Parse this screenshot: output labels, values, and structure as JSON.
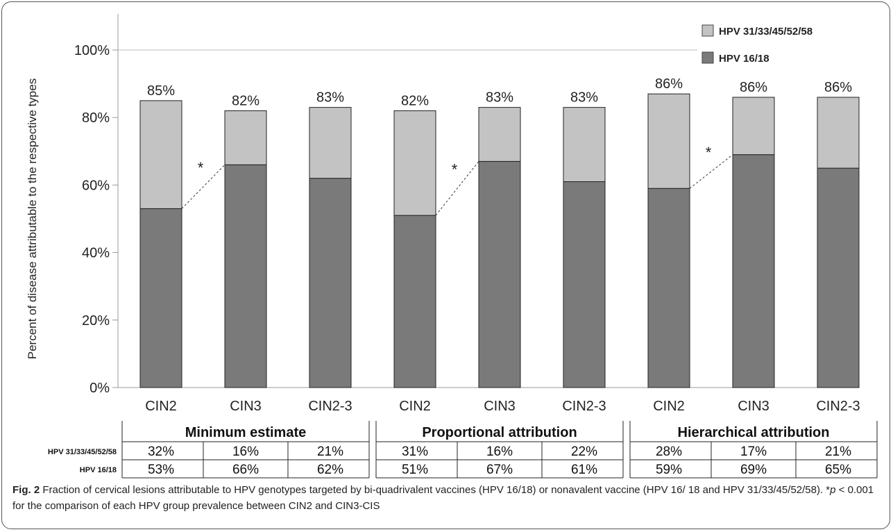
{
  "chart_data": {
    "type": "bar",
    "stacked": true,
    "ylabel": "Percent of disease attributable to the respective types",
    "yticks": [
      "0%",
      "20%",
      "40%",
      "60%",
      "80%",
      "100%"
    ],
    "ylim": [
      0,
      100
    ],
    "categories": [
      "CIN2",
      "CIN3",
      "CIN2-3",
      "CIN2",
      "CIN3",
      "CIN2-3",
      "CIN2",
      "CIN3",
      "CIN2-3"
    ],
    "groups": [
      "Minimum estimate",
      "Proportional attribution",
      "Hierarchical attribution"
    ],
    "series": [
      {
        "name": "HPV 16/18",
        "color": "#7a7a7a",
        "values": [
          53,
          66,
          62,
          51,
          67,
          61,
          59,
          69,
          65
        ]
      },
      {
        "name": "HPV 31/33/45/52/58",
        "color": "#c3c3c3",
        "values": [
          32,
          16,
          21,
          31,
          16,
          22,
          28,
          17,
          21
        ]
      }
    ],
    "totals": [
      "85%",
      "82%",
      "83%",
      "82%",
      "83%",
      "83%",
      "86%",
      "86%",
      "86%"
    ],
    "legend": [
      "HPV 31/33/45/52/58",
      "HPV 16/18"
    ],
    "legend_position": "top-right",
    "significance_marks": [
      {
        "from": 0,
        "to": 1,
        "label": "*"
      },
      {
        "from": 3,
        "to": 4,
        "label": "*"
      },
      {
        "from": 6,
        "to": 7,
        "label": "*"
      }
    ],
    "table": {
      "row_labels": [
        "HPV 31/33/45/52/58",
        "HPV 16/18"
      ],
      "rows": [
        [
          "32%",
          "16%",
          "21%",
          "31%",
          "16%",
          "22%",
          "28%",
          "17%",
          "21%"
        ],
        [
          "53%",
          "66%",
          "62%",
          "51%",
          "67%",
          "61%",
          "59%",
          "69%",
          "65%"
        ]
      ]
    }
  },
  "caption": {
    "fig_label": "Fig. 2",
    "text_1": " Fraction of cervical lesions attributable to HPV genotypes targeted by bi-quadrivalent vaccines (HPV 16/18) or nonavalent vaccine (HPV 16/ 18 and HPV 31/33/45/52/58). *",
    "p_symbol": "p",
    "text_2": " < 0.001 for the comparison of each HPV group prevalence between CIN2 and CIN3-CIS"
  }
}
